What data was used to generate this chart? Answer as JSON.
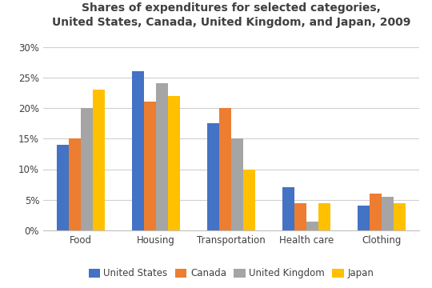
{
  "title": "Shares of expenditures for selected categories,\nUnited States, Canada, United Kingdom, and Japan, 2009",
  "categories": [
    "Food",
    "Housing",
    "Transportation",
    "Health care",
    "Clothing"
  ],
  "series": {
    "United States": [
      14,
      26,
      17.5,
      7,
      4
    ],
    "Canada": [
      15,
      21,
      20,
      4.5,
      6
    ],
    "United Kingdom": [
      20,
      24,
      15,
      1.5,
      5.5
    ],
    "Japan": [
      23,
      22,
      10,
      4.5,
      4.5
    ]
  },
  "colors": {
    "United States": "#4472C4",
    "Canada": "#ED7D31",
    "United Kingdom": "#A5A5A5",
    "Japan": "#FFC000"
  },
  "ylim": [
    0,
    32
  ],
  "yticks": [
    0,
    5,
    10,
    15,
    20,
    25,
    30
  ],
  "ytick_labels": [
    "0%",
    "5%",
    "10%",
    "15%",
    "20%",
    "25%",
    "30%"
  ],
  "background_color": "#ffffff",
  "title_fontsize": 10,
  "legend_fontsize": 8.5,
  "tick_fontsize": 8.5
}
